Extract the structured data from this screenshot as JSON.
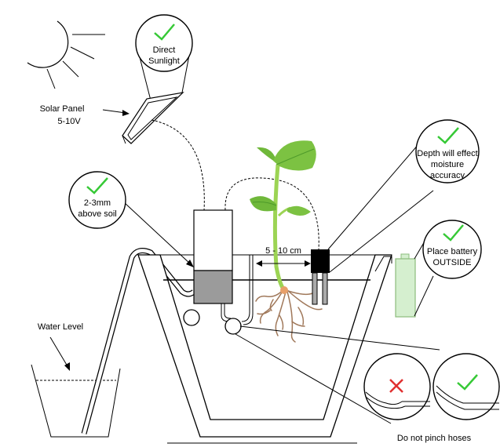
{
  "labels": {
    "solar_panel_line1": "Solar Panel",
    "solar_panel_line2": "5-10V",
    "water_level": "Water Level",
    "distance": "5 - 10 cm",
    "do_not_pinch": "Do not pinch hoses"
  },
  "callouts": {
    "sunlight": {
      "line1": "Direct",
      "line2": "Sunlight"
    },
    "height": {
      "line1": "2-3mm",
      "line2": "above soil"
    },
    "depth": {
      "line1": "Depth will effect",
      "line2": "moisture",
      "line3": "accuracy"
    },
    "battery": {
      "line1": "Place battery",
      "line2": "OUTSIDE"
    }
  },
  "colors": {
    "check": "#36c936",
    "cross": "#e03030",
    "root": "#a0785a",
    "leaf": "#7cc242",
    "leaf_dark": "#4e9a2a",
    "stem": "#9cd454",
    "battery_fill": "#d5efcf",
    "battery_stroke": "#8cbc7c",
    "sensor_gray": "#9b9b9b",
    "pot_stroke": "#000000"
  },
  "icons": [
    "sun-icon",
    "check-icon",
    "cross-icon",
    "seedling-icon",
    "battery-icon"
  ]
}
